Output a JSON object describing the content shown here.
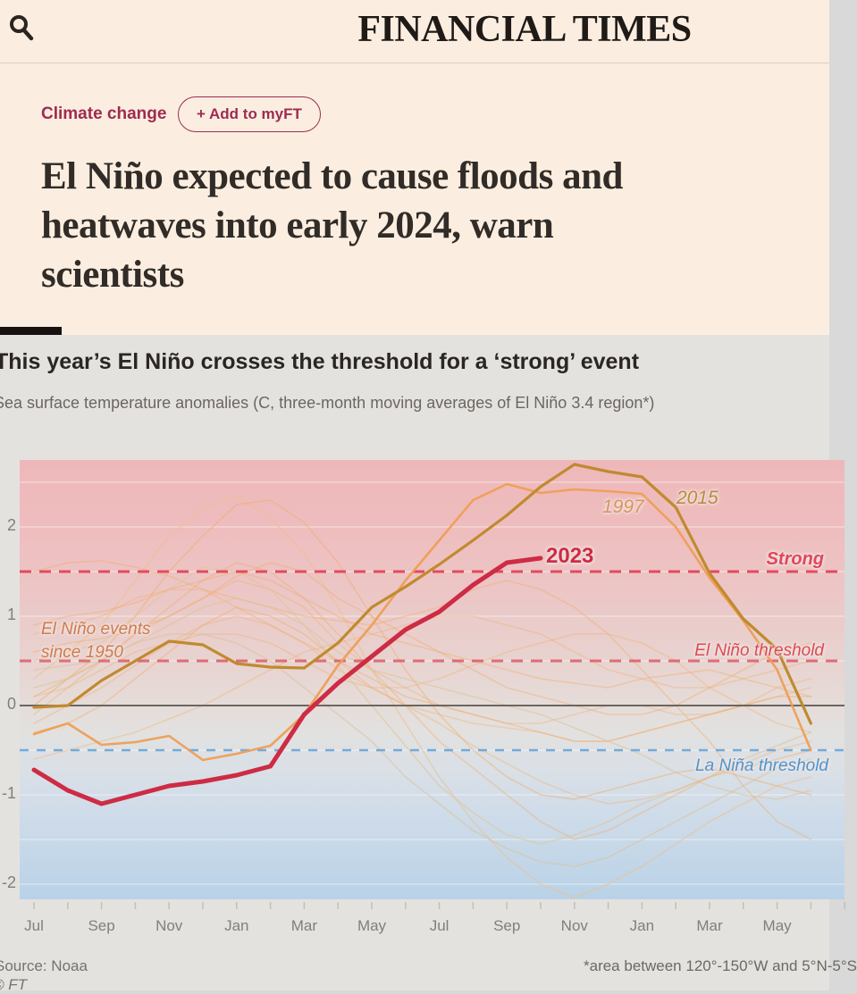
{
  "header": {
    "logo": "FINANCIAL TIMES",
    "search_icon": "search"
  },
  "article": {
    "tag": "Climate change",
    "add_to_myft": "+ Add to myFT",
    "headline_lines": [
      "El Niño expected to cause floods and",
      "heatwaves into early 2024, warn",
      "scientists"
    ]
  },
  "footer": {
    "source": "Source: Noaa",
    "credit": "© FT",
    "footnote": "*area between 120°-150°W and 5°N-5°S"
  },
  "chart_data": {
    "type": "line",
    "title": "This year’s El Niño crosses the threshold for a ‘strong’ event",
    "subtitle": "Sea surface temperature anomalies (C, three-month moving averages of El Niño 3.4 region*)",
    "x_unit": "months from July of onset year, 24-month window",
    "x_tick_labels": [
      "Jul",
      "Sep",
      "Nov",
      "Jan",
      "Mar",
      "May",
      "Jul",
      "Sep",
      "Nov",
      "Jan",
      "Mar",
      "May"
    ],
    "y_ticks": [
      2,
      1,
      0,
      -1,
      -2
    ],
    "ylim": [
      -2.17,
      2.75
    ],
    "grid": true,
    "gridlines": [
      2.5,
      2,
      1.5,
      1,
      0.5,
      -0.5,
      -1,
      -1.5,
      -2
    ],
    "background_gradient": [
      [
        0,
        "#eeb8ba"
      ],
      [
        0.152,
        "#eebdbe"
      ],
      [
        0.254,
        "#edc3c3"
      ],
      [
        0.356,
        "#eacbc9"
      ],
      [
        0.457,
        "#e8d3d0"
      ],
      [
        0.559,
        "#e5dcd9"
      ],
      [
        0.62,
        "#e2e1e0"
      ],
      [
        0.701,
        "#dae0e6"
      ],
      [
        0.803,
        "#cfdce9"
      ],
      [
        0.904,
        "#c4d7e8"
      ],
      [
        1,
        "#b9d2e7"
      ]
    ],
    "zero_line": {
      "value": 0,
      "color": "#6b6661"
    },
    "thresholds": [
      {
        "label": "Strong",
        "value": 1.5,
        "color": "#e14b5f",
        "width": 3,
        "dash": "13 9",
        "line_opacity": 1
      },
      {
        "label": "El Niño threshold",
        "value": 0.5,
        "color": "#d94f5e",
        "width": 3,
        "dash": "13 9",
        "line_opacity": 0.8
      },
      {
        "label": "La Niña threshold",
        "value": -0.5,
        "color": "#6ea6d6",
        "width": 2.6,
        "dash": "10 9",
        "line_opacity": 0.95
      }
    ],
    "annotations": {
      "events_line1": "El Niño events",
      "events_line2": "since 1950",
      "label_2023": "2023",
      "label_1997": "1997",
      "label_2015": "2015"
    },
    "series": [
      {
        "name": "event-a",
        "color": "#f0ab66",
        "width": 1.6,
        "opacity": 0.4,
        "values": [
          -0.3,
          -0.2,
          0.0,
          0.3,
          0.6,
          0.9,
          1.1,
          1.0,
          0.8,
          0.5,
          0.3,
          0.1,
          0.0,
          -0.1,
          -0.2,
          -0.3,
          -0.4,
          -0.4,
          -0.3,
          -0.2,
          -0.1,
          0.0,
          0.1,
          0.1
        ]
      },
      {
        "name": "event-b",
        "color": "#f0ab66",
        "width": 1.6,
        "opacity": 0.4,
        "values": [
          0.1,
          0.3,
          0.5,
          0.8,
          1.1,
          1.4,
          1.6,
          1.5,
          1.2,
          0.8,
          0.4,
          0.0,
          -0.4,
          -0.7,
          -1.0,
          -1.3,
          -1.5,
          -1.4,
          -1.2,
          -1.0,
          -0.8,
          -0.7,
          -0.6,
          -0.5
        ]
      },
      {
        "name": "event-c",
        "color": "#ecbf8c",
        "width": 1.6,
        "opacity": 0.55,
        "values": [
          0.3,
          0.6,
          0.9,
          1.4,
          1.9,
          2.2,
          2.35,
          2.1,
          1.7,
          1.1,
          0.4,
          -0.2,
          -0.8,
          -1.3,
          -1.7,
          -2.0,
          -2.15,
          -2.0,
          -1.8,
          -1.55,
          -1.3,
          -1.1,
          -0.9,
          -0.8
        ]
      },
      {
        "name": "event-d",
        "color": "#f0ab66",
        "width": 1.6,
        "opacity": 0.45,
        "values": [
          0.0,
          0.3,
          0.6,
          1.0,
          1.5,
          1.9,
          2.25,
          2.3,
          2.05,
          1.6,
          1.0,
          0.4,
          -0.1,
          -0.5,
          -0.8,
          -1.0,
          -1.05,
          -0.95,
          -0.85,
          -0.75,
          -0.7,
          -0.8,
          -0.9,
          -1.0
        ]
      },
      {
        "name": "event-e",
        "color": "#f0ab66",
        "width": 1.6,
        "opacity": 0.4,
        "values": [
          0.9,
          1.0,
          1.05,
          1.15,
          1.3,
          1.4,
          1.5,
          1.4,
          1.2,
          1.0,
          0.8,
          0.7,
          0.6,
          0.5,
          0.4,
          0.3,
          0.25,
          0.2,
          0.3,
          0.35,
          0.4,
          0.3,
          0.2,
          0.1
        ]
      },
      {
        "name": "event-f",
        "color": "#f0ab66",
        "width": 1.6,
        "opacity": 0.4,
        "values": [
          1.5,
          1.6,
          1.62,
          1.55,
          1.45,
          1.3,
          1.2,
          1.1,
          1.0,
          0.95,
          0.9,
          1.0,
          1.1,
          1.3,
          1.4,
          1.3,
          1.1,
          0.8,
          0.4,
          0.0,
          -0.4,
          -0.9,
          -1.3,
          -1.5
        ]
      },
      {
        "name": "event-g",
        "color": "#f0ab66",
        "width": 1.6,
        "opacity": 0.35,
        "values": [
          -0.1,
          0.2,
          0.5,
          0.8,
          1.0,
          1.2,
          1.4,
          1.3,
          1.1,
          0.7,
          0.4,
          0.2,
          0.0,
          -0.1,
          -0.2,
          -0.2,
          -0.1,
          0.0,
          0.0,
          -0.1,
          -0.1,
          0.0,
          0.1,
          0.2
        ]
      },
      {
        "name": "event-h",
        "color": "#f0ab66",
        "width": 1.6,
        "opacity": 0.4,
        "values": [
          0.6,
          0.7,
          0.75,
          0.85,
          1.0,
          1.2,
          1.45,
          1.6,
          1.5,
          1.2,
          1.0,
          0.8,
          0.6,
          0.4,
          0.2,
          0.1,
          0.0,
          -0.1,
          -0.1,
          0.0,
          0.2,
          0.4,
          0.6,
          0.7
        ]
      },
      {
        "name": "event-i",
        "color": "#f0ab66",
        "width": 1.6,
        "opacity": 0.35,
        "values": [
          0.8,
          0.9,
          1.0,
          1.2,
          1.3,
          1.3,
          1.1,
          0.9,
          0.7,
          0.4,
          0.2,
          0.0,
          -0.1,
          -0.2,
          -0.25,
          -0.3,
          -0.4,
          -0.4,
          -0.3,
          -0.2,
          -0.1,
          0.0,
          0.2,
          0.3
        ]
      },
      {
        "name": "event-j",
        "color": "#dfc59c",
        "width": 1.6,
        "opacity": 0.6,
        "values": [
          0.5,
          0.6,
          0.7,
          1.0,
          1.3,
          1.55,
          1.5,
          1.3,
          0.9,
          0.45,
          0.0,
          -0.45,
          -0.9,
          -1.2,
          -1.45,
          -1.55,
          -1.45,
          -1.3,
          -1.1,
          -0.95,
          -0.8,
          -0.6,
          -0.45,
          -0.3
        ]
      },
      {
        "name": "event-k",
        "color": "#f0ab66",
        "width": 1.6,
        "opacity": 0.35,
        "values": [
          -0.6,
          -0.5,
          -0.4,
          -0.3,
          -0.15,
          0.0,
          0.2,
          0.4,
          0.6,
          0.7,
          0.8,
          0.9,
          1.0,
          1.0,
          0.9,
          0.8,
          0.6,
          0.4,
          0.3,
          0.2,
          0.2,
          0.3,
          0.4,
          0.5
        ]
      },
      {
        "name": "event-l",
        "color": "#f0ab66",
        "width": 1.6,
        "opacity": 0.35,
        "values": [
          0.1,
          0.2,
          0.4,
          0.6,
          0.7,
          0.8,
          0.8,
          0.7,
          0.5,
          0.3,
          0.2,
          0.2,
          0.3,
          0.45,
          0.6,
          0.7,
          0.8,
          0.8,
          0.7,
          0.5,
          0.2,
          0.0,
          -0.2,
          -0.3
        ]
      },
      {
        "name": "event-m",
        "color": "#ddc39a",
        "width": 1.6,
        "opacity": 0.55,
        "values": [
          0.4,
          0.45,
          0.5,
          0.7,
          0.9,
          1.1,
          1.2,
          1.1,
          0.9,
          0.6,
          0.4,
          0.3,
          0.2,
          0.1,
          0.0,
          -0.1,
          -0.25,
          -0.4,
          -0.55,
          -0.75,
          -0.9,
          -1.0,
          -1.05,
          -0.95
        ]
      },
      {
        "name": "event-n",
        "color": "#f0ab66",
        "width": 1.6,
        "opacity": 0.35,
        "values": [
          -0.2,
          0.0,
          0.2,
          0.45,
          0.7,
          0.9,
          1.0,
          0.9,
          0.7,
          0.5,
          0.2,
          0.0,
          -0.2,
          -0.45,
          -0.65,
          -0.85,
          -1.0,
          -1.1,
          -1.05,
          -0.95,
          -0.8,
          -0.65,
          -0.5,
          -0.4
        ]
      },
      {
        "name": "event-o",
        "color": "#d8c29a",
        "width": 1.6,
        "opacity": 0.55,
        "values": [
          0.2,
          0.3,
          0.5,
          0.7,
          0.8,
          0.8,
          0.7,
          0.5,
          0.2,
          -0.1,
          -0.4,
          -0.8,
          -1.1,
          -1.4,
          -1.6,
          -1.75,
          -1.8,
          -1.7,
          -1.5,
          -1.3,
          -1.1,
          -0.9,
          -0.7,
          -0.6
        ]
      },
      {
        "name": "1997",
        "color": "#ee9e55",
        "width": 2.6,
        "opacity": 0.95,
        "values": [
          -0.32,
          -0.2,
          -0.44,
          -0.41,
          -0.34,
          -0.61,
          -0.54,
          -0.45,
          -0.1,
          0.45,
          0.9,
          1.4,
          1.85,
          2.3,
          2.48,
          2.38,
          2.42,
          2.4,
          2.37,
          2.0,
          1.43,
          0.95,
          0.4,
          -0.5
        ]
      },
      {
        "name": "2015",
        "color": "#c08a2f",
        "width": 3.2,
        "opacity": 1,
        "values": [
          -0.02,
          0.0,
          0.28,
          0.5,
          0.72,
          0.68,
          0.47,
          0.43,
          0.42,
          0.7,
          1.1,
          1.33,
          1.58,
          1.85,
          2.13,
          2.45,
          2.7,
          2.62,
          2.56,
          2.22,
          1.48,
          0.97,
          0.63,
          -0.2
        ]
      },
      {
        "name": "2023",
        "color": "#ce2b45",
        "width": 5,
        "opacity": 1,
        "values": [
          -0.72,
          -0.95,
          -1.1,
          -1.0,
          -0.9,
          -0.85,
          -0.78,
          -0.68,
          -0.1,
          0.25,
          0.55,
          0.85,
          1.05,
          1.35,
          1.6,
          1.65
        ]
      }
    ]
  }
}
